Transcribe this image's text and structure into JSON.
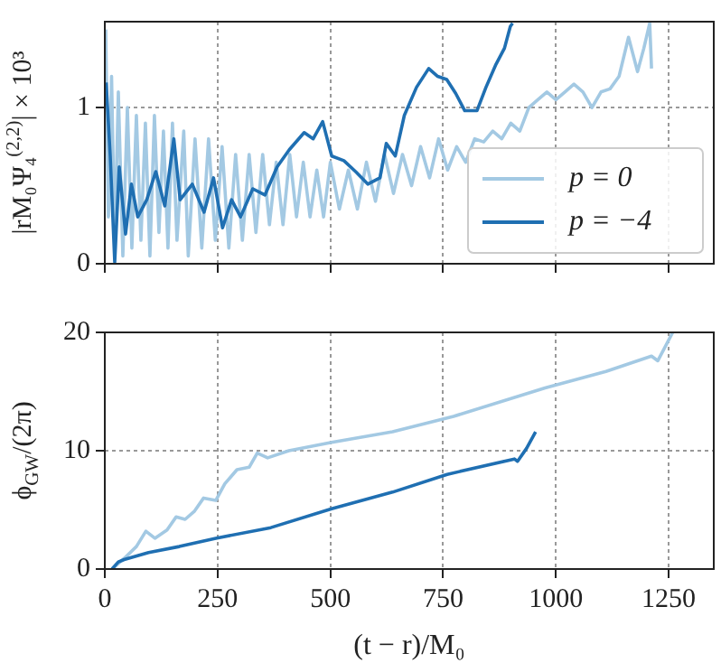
{
  "chart_data": [
    {
      "type": "line",
      "ylabel": "|rM₀Ψ₄$^{(2,2)}$| × 10³",
      "xlim": [
        0,
        1350
      ],
      "xticks": [
        0,
        250,
        500,
        750,
        1000,
        1250
      ],
      "ylim": [
        0,
        1.55
      ],
      "yticks": [
        0,
        1
      ],
      "grid": true,
      "legend": "bottom right",
      "tick_labels": "y",
      "line_style": "solid",
      "series": [
        {
          "name": "p = 0",
          "color": "#a3c9e3",
          "x": [
            2,
            8,
            15,
            22,
            30,
            40,
            50,
            60,
            70,
            80,
            90,
            100,
            110,
            120,
            130,
            140,
            150,
            160,
            175,
            185,
            200,
            215,
            230,
            245,
            260,
            275,
            290,
            305,
            320,
            335,
            350,
            365,
            380,
            395,
            410,
            425,
            440,
            455,
            470,
            485,
            500,
            520,
            540,
            560,
            580,
            600,
            620,
            640,
            660,
            680,
            700,
            720,
            740,
            760,
            780,
            800,
            820,
            840,
            860,
            880,
            900,
            920,
            940,
            960,
            980,
            1000,
            1020,
            1040,
            1060,
            1080,
            1100,
            1120,
            1140,
            1161,
            1181,
            1195,
            1208,
            1212
          ],
          "values": [
            1.5,
            0.3,
            1.2,
            0.1,
            1.1,
            0.05,
            1.0,
            0.1,
            0.95,
            0.15,
            0.9,
            0.05,
            0.95,
            0.2,
            0.85,
            0.1,
            0.9,
            0.15,
            0.85,
            0.05,
            0.8,
            0.1,
            0.8,
            0.15,
            0.75,
            0.1,
            0.7,
            0.15,
            0.7,
            0.2,
            0.7,
            0.25,
            0.65,
            0.25,
            0.7,
            0.3,
            0.65,
            0.3,
            0.6,
            0.3,
            0.65,
            0.35,
            0.6,
            0.35,
            0.65,
            0.4,
            0.7,
            0.45,
            0.7,
            0.5,
            0.75,
            0.55,
            0.8,
            0.6,
            0.75,
            0.65,
            0.8,
            0.78,
            0.85,
            0.8,
            0.9,
            0.85,
            1.0,
            1.05,
            1.1,
            1.05,
            1.1,
            1.15,
            1.1,
            1.0,
            1.1,
            1.12,
            1.2,
            1.45,
            1.23,
            1.38,
            1.54,
            1.25
          ]
        },
        {
          "name": "p = −4",
          "color": "#1f6fb2",
          "x": [
            3,
            12,
            22,
            32,
            46,
            59,
            73,
            93,
            113,
            133,
            153,
            167,
            194,
            220,
            241,
            261,
            281,
            301,
            328,
            355,
            382,
            409,
            442,
            462,
            483,
            503,
            530,
            556,
            583,
            610,
            624,
            644,
            664,
            691,
            718,
            738,
            758,
            778,
            798,
            825,
            845,
            866,
            886,
            899,
            904
          ],
          "values": [
            1.16,
            0.69,
            0.01,
            0.62,
            0.19,
            0.51,
            0.3,
            0.41,
            0.59,
            0.37,
            0.8,
            0.41,
            0.51,
            0.33,
            0.55,
            0.23,
            0.41,
            0.3,
            0.48,
            0.44,
            0.62,
            0.73,
            0.84,
            0.8,
            0.91,
            0.69,
            0.66,
            0.59,
            0.51,
            0.55,
            0.77,
            0.69,
            0.95,
            1.13,
            1.25,
            1.2,
            1.18,
            1.09,
            0.98,
            0.98,
            1.13,
            1.27,
            1.38,
            1.52,
            1.54
          ]
        }
      ]
    },
    {
      "type": "line",
      "xlabel": "(t − r)/M₀",
      "ylabel": "ϕ$_{GW}$/(2π)",
      "xlim": [
        0,
        1350
      ],
      "xticks": [
        0,
        250,
        500,
        750,
        1000,
        1250
      ],
      "ylim": [
        0,
        20
      ],
      "yticks": [
        0,
        10,
        20
      ],
      "grid": true,
      "line_style": "solid",
      "series": [
        {
          "color": "#a3c9e3",
          "x": [
            16,
            43,
            70,
            91,
            111,
            138,
            158,
            178,
            199,
            219,
            246,
            266,
            293,
            320,
            338,
            361,
            408,
            503,
            638,
            773,
            976,
            1111,
            1212,
            1226,
            1259
          ],
          "values": [
            0,
            0.9,
            1.9,
            3.2,
            2.6,
            3.3,
            4.4,
            4.2,
            4.9,
            6.0,
            5.8,
            7.2,
            8.4,
            8.6,
            9.8,
            9.4,
            10.0,
            10.7,
            11.6,
            12.9,
            15.3,
            16.7,
            18.0,
            17.6,
            20
          ]
        },
        {
          "color": "#1f6fb2",
          "x": [
            16,
            30,
            43,
            97,
            165,
            246,
            368,
            503,
            638,
            759,
            908,
            915,
            935,
            955
          ],
          "values": [
            0,
            0.6,
            0.8,
            1.4,
            1.9,
            2.6,
            3.5,
            5.1,
            6.5,
            8.0,
            9.3,
            9.1,
            10.2,
            11.6
          ]
        }
      ]
    }
  ]
}
